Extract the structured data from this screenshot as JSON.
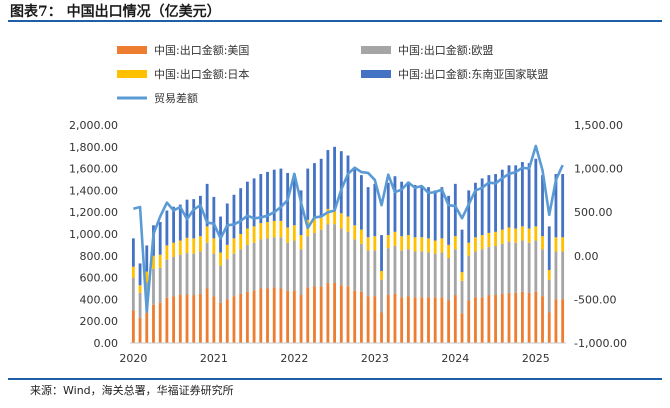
{
  "header": {
    "title": "图表7：  中国出口情况（亿美元）"
  },
  "footer": {
    "source": "来源：Wind，海关总署，华福证券研究所"
  },
  "chart_data": {
    "type": "bar",
    "stacked": true,
    "title": "中国出口情况（亿美元）",
    "unit": "亿美元",
    "x_axis": {
      "tick_labels": [
        "2020",
        "2021",
        "2022",
        "2023",
        "2024",
        "2025"
      ],
      "start_year": 2020,
      "months_per_year": 12,
      "n_months": 65
    },
    "y_left": {
      "min": 0,
      "max": 2000,
      "step": 200,
      "tick_labels": [
        "0.00",
        "200.00",
        "400.00",
        "600.00",
        "800.00",
        "1,000.00",
        "1,200.00",
        "1,400.00",
        "1,600.00",
        "1,800.00",
        "2,000.00"
      ]
    },
    "y_right": {
      "min": -1000,
      "max": 1500,
      "step": 500,
      "tick_labels": [
        "-1,000.00",
        "-500.00",
        "0.00",
        "500.00",
        "1,000.00",
        "1,500.00"
      ]
    },
    "colors": {
      "us": "#ed7d31",
      "eu": "#a5a5a5",
      "jp": "#ffc000",
      "asean": "#4472c4",
      "balance": "#5b9bd5"
    },
    "legend": [
      {
        "key": "us",
        "label": "中国:出口金额:美国",
        "kind": "bar"
      },
      {
        "key": "eu",
        "label": "中国:出口金额:欧盟",
        "kind": "bar"
      },
      {
        "key": "jp",
        "label": "中国:出口金额:日本",
        "kind": "bar"
      },
      {
        "key": "asean",
        "label": "中国:出口金额:东南亚国家联盟",
        "kind": "bar"
      },
      {
        "key": "balance",
        "label": "贸易差额",
        "kind": "line"
      }
    ],
    "series": [
      {
        "name": "中国:出口金额:美国",
        "key": "us",
        "axis": "left",
        "values": [
          300,
          230,
          275,
          350,
          370,
          415,
          430,
          440,
          445,
          440,
          450,
          500,
          430,
          370,
          400,
          430,
          450,
          470,
          480,
          500,
          500,
          510,
          500,
          480,
          480,
          440,
          510,
          520,
          520,
          550,
          550,
          530,
          520,
          480,
          470,
          430,
          430,
          280,
          440,
          450,
          420,
          430,
          420,
          420,
          420,
          420,
          420,
          390,
          440,
          270,
          390,
          420,
          420,
          440,
          440,
          450,
          460,
          460,
          470,
          460,
          470,
          430,
          280,
          400,
          400
        ]
      },
      {
        "name": "中国:出口金额:欧盟",
        "key": "eu",
        "axis": "left",
        "values": [
          300,
          230,
          280,
          330,
          320,
          350,
          360,
          370,
          380,
          380,
          390,
          420,
          390,
          340,
          370,
          390,
          410,
          430,
          440,
          450,
          460,
          460,
          470,
          440,
          460,
          420,
          470,
          490,
          520,
          540,
          540,
          520,
          500,
          470,
          440,
          420,
          420,
          300,
          430,
          440,
          430,
          430,
          420,
          420,
          410,
          400,
          410,
          390,
          420,
          300,
          410,
          420,
          440,
          440,
          450,
          460,
          470,
          460,
          470,
          460,
          470,
          430,
          300,
          440,
          440
        ]
      },
      {
        "name": "中国:出口金额:日本",
        "key": "jp",
        "axis": "left",
        "values": [
          100,
          70,
          100,
          120,
          120,
          130,
          130,
          130,
          140,
          140,
          140,
          150,
          140,
          120,
          130,
          140,
          140,
          150,
          150,
          150,
          150,
          150,
          150,
          140,
          140,
          130,
          150,
          140,
          130,
          140,
          140,
          140,
          140,
          130,
          130,
          120,
          130,
          80,
          120,
          130,
          130,
          130,
          130,
          130,
          130,
          120,
          130,
          120,
          120,
          80,
          120,
          130,
          130,
          130,
          130,
          130,
          130,
          130,
          130,
          130,
          130,
          120,
          90,
          130,
          130
        ]
      },
      {
        "name": "中国:出口金额:东南亚国家联盟",
        "key": "asean",
        "axis": "left",
        "values": [
          260,
          200,
          240,
          280,
          300,
          320,
          330,
          330,
          350,
          360,
          370,
          390,
          380,
          330,
          380,
          400,
          420,
          430,
          440,
          450,
          460,
          470,
          480,
          500,
          470,
          410,
          470,
          500,
          520,
          540,
          570,
          570,
          560,
          530,
          500,
          460,
          480,
          330,
          480,
          510,
          500,
          490,
          480,
          470,
          470,
          460,
          470,
          450,
          480,
          390,
          480,
          500,
          520,
          530,
          530,
          550,
          570,
          580,
          590,
          600,
          620,
          560,
          400,
          580,
          580
        ]
      },
      {
        "name": "贸易差额",
        "key": "balance",
        "axis": "right",
        "values": [
          540,
          560,
          -640,
          250,
          450,
          610,
          520,
          560,
          420,
          530,
          580,
          380,
          370,
          200,
          350,
          360,
          400,
          460,
          430,
          440,
          460,
          500,
          560,
          640,
          940,
          610,
          320,
          440,
          450,
          500,
          520,
          760,
          940,
          1010,
          960,
          950,
          870,
          580,
          930,
          730,
          760,
          840,
          780,
          800,
          720,
          730,
          760,
          580,
          570,
          430,
          590,
          750,
          780,
          840,
          830,
          890,
          940,
          960,
          1010,
          1000,
          1260,
          980,
          470,
          870,
          1040
        ]
      }
    ]
  }
}
